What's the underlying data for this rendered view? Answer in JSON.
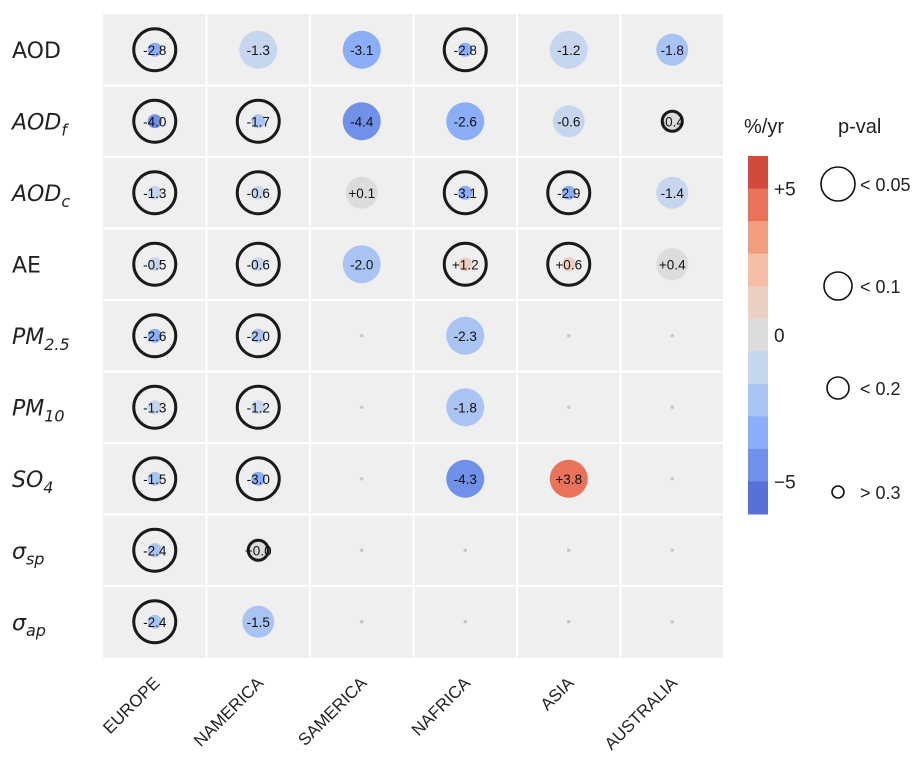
{
  "chart_data": {
    "type": "heatmap",
    "value_unit": "%/yr",
    "columns": [
      "EUROPE",
      "NAMERICA",
      "SAMERICA",
      "NAFRICA",
      "ASIA",
      "AUSTRALIA"
    ],
    "rows": [
      {
        "label": "AOD",
        "sub": ""
      },
      {
        "label": "AOD",
        "sub": "f"
      },
      {
        "label": "AOD",
        "sub": "c"
      },
      {
        "label": "AE",
        "sub": ""
      },
      {
        "label": "PM",
        "sub": "2.5"
      },
      {
        "label": "PM",
        "sub": "10"
      },
      {
        "label": "SO",
        "sub": "4"
      },
      {
        "label": "σ",
        "sub": "sp"
      },
      {
        "label": "σ",
        "sub": "ap"
      }
    ],
    "cells": [
      [
        {
          "v": -2.8,
          "t": "-2.8",
          "p": 3
        },
        {
          "v": -1.3,
          "t": "-1.3",
          "p": 0
        },
        {
          "v": -3.1,
          "t": "-3.1",
          "p": 0
        },
        {
          "v": -2.8,
          "t": "-2.8",
          "p": 3
        },
        {
          "v": -1.2,
          "t": "-1.2",
          "p": 0
        },
        {
          "v": -1.8,
          "t": "-1.8",
          "p": 1
        }
      ],
      [
        {
          "v": -4.0,
          "t": "-4.0",
          "p": 3
        },
        {
          "v": -1.7,
          "t": "-1.7",
          "p": 3
        },
        {
          "v": -4.4,
          "t": "-4.4",
          "p": 0
        },
        {
          "v": -2.6,
          "t": "-2.6",
          "p": 0
        },
        {
          "v": -0.6,
          "t": "-0.6",
          "p": 1
        },
        {
          "v": -0.4,
          "t": "-0.4",
          "p": 2
        }
      ],
      [
        {
          "v": -1.3,
          "t": "-1.3",
          "p": 3
        },
        {
          "v": -0.6,
          "t": "-0.6",
          "p": 3
        },
        {
          "v": 0.1,
          "t": "+0.1",
          "p": 1
        },
        {
          "v": -3.1,
          "t": "-3.1",
          "p": 3
        },
        {
          "v": -2.9,
          "t": "-2.9",
          "p": 3
        },
        {
          "v": -1.4,
          "t": "-1.4",
          "p": 1
        }
      ],
      [
        {
          "v": -0.5,
          "t": "-0.5",
          "p": 3
        },
        {
          "v": -0.6,
          "t": "-0.6",
          "p": 3
        },
        {
          "v": -2.0,
          "t": "-2.0",
          "p": 0
        },
        {
          "v": 1.2,
          "t": "+1.2",
          "p": 3
        },
        {
          "v": 0.6,
          "t": "+0.6",
          "p": 3
        },
        {
          "v": 0.4,
          "t": "+0.4",
          "p": 1
        }
      ],
      [
        {
          "v": -2.6,
          "t": "-2.6",
          "p": 3
        },
        {
          "v": -2.0,
          "t": "-2.0",
          "p": 3
        },
        null,
        {
          "v": -2.3,
          "t": "-2.3",
          "p": 0
        },
        null,
        null
      ],
      [
        {
          "v": -1.3,
          "t": "-1.3",
          "p": 3
        },
        {
          "v": -1.2,
          "t": "-1.2",
          "p": 3
        },
        null,
        {
          "v": -1.8,
          "t": "-1.8",
          "p": 0
        },
        null,
        null
      ],
      [
        {
          "v": -1.5,
          "t": "-1.5",
          "p": 3
        },
        {
          "v": -3.0,
          "t": "-3.0",
          "p": 3
        },
        null,
        {
          "v": -4.3,
          "t": "-4.3",
          "p": 0
        },
        {
          "v": 3.8,
          "t": "+3.8",
          "p": 0
        },
        null
      ],
      [
        {
          "v": -2.4,
          "t": "-2.4",
          "p": 3
        },
        {
          "v": 0.0,
          "t": "+0.0",
          "p": 2
        },
        null,
        null,
        null,
        null
      ],
      [
        {
          "v": -2.4,
          "t": "-2.4",
          "p": 3
        },
        {
          "v": -1.5,
          "t": "-1.5",
          "p": 1
        },
        null,
        null,
        null,
        null
      ]
    ],
    "colorbar": {
      "title": "%/yr",
      "range": [
        -5,
        5
      ],
      "bands": 10,
      "ticks": [
        "+5",
        "0",
        "−5"
      ],
      "colors": [
        "#d24a3d",
        "#e8735a",
        "#f39d80",
        "#f5bea5",
        "#eccfc3",
        "#dcdcdc",
        "#c7d6ef",
        "#a9c3f3",
        "#8caef8",
        "#6f91ea",
        "#5871d9"
      ]
    },
    "pvalue_legend": {
      "title": "p-val",
      "labels": [
        "< 0.05",
        "< 0.1",
        "< 0.2",
        "> 0.3"
      ]
    }
  }
}
